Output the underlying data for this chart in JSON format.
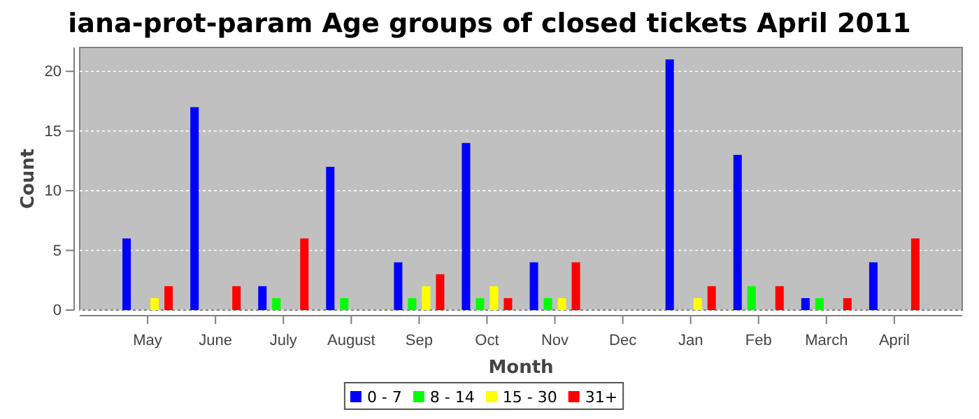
{
  "chart_data": {
    "type": "bar",
    "title": "iana-prot-param Age groups of closed tickets April 2011",
    "xlabel": "Month",
    "ylabel": "Count",
    "categories": [
      "May",
      "June",
      "July",
      "August",
      "Sep",
      "Oct",
      "Nov",
      "Dec",
      "Jan",
      "Feb",
      "March",
      "April"
    ],
    "series": [
      {
        "name": "0 - 7",
        "color": "#0000ff",
        "values": [
          6,
          17,
          2,
          12,
          4,
          14,
          4,
          0,
          21,
          13,
          1,
          4
        ]
      },
      {
        "name": "8 - 14",
        "color": "#00ff00",
        "values": [
          0,
          0,
          1,
          1,
          1,
          1,
          1,
          0,
          0,
          2,
          1,
          0
        ]
      },
      {
        "name": "15 - 30",
        "color": "#ffff00",
        "values": [
          1,
          0,
          0,
          0,
          2,
          2,
          1,
          0,
          1,
          0,
          0,
          0
        ]
      },
      {
        "name": "31+",
        "color": "#ff0000",
        "values": [
          2,
          2,
          6,
          0,
          3,
          1,
          4,
          0,
          2,
          2,
          1,
          6
        ]
      }
    ],
    "ylim": [
      0,
      22
    ],
    "yticks": [
      0,
      5,
      10,
      15,
      20
    ],
    "grid": "y",
    "legend": "bottom"
  }
}
